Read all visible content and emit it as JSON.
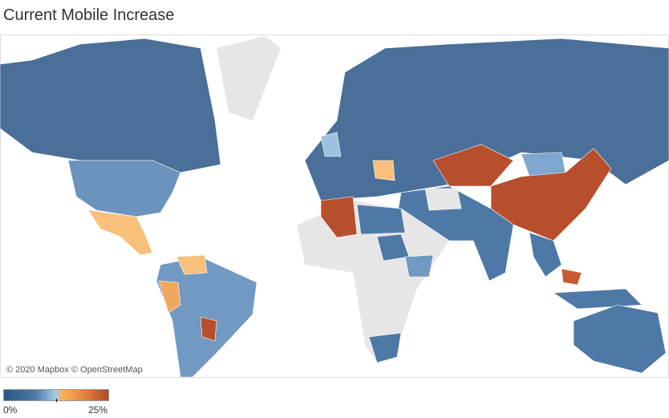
{
  "title": "Current Mobile Increase",
  "map": {
    "attribution": "© 2020 Mapbox © OpenStreetMap"
  },
  "legend": {
    "min_label": "0%",
    "max_label": "25%"
  }
}
